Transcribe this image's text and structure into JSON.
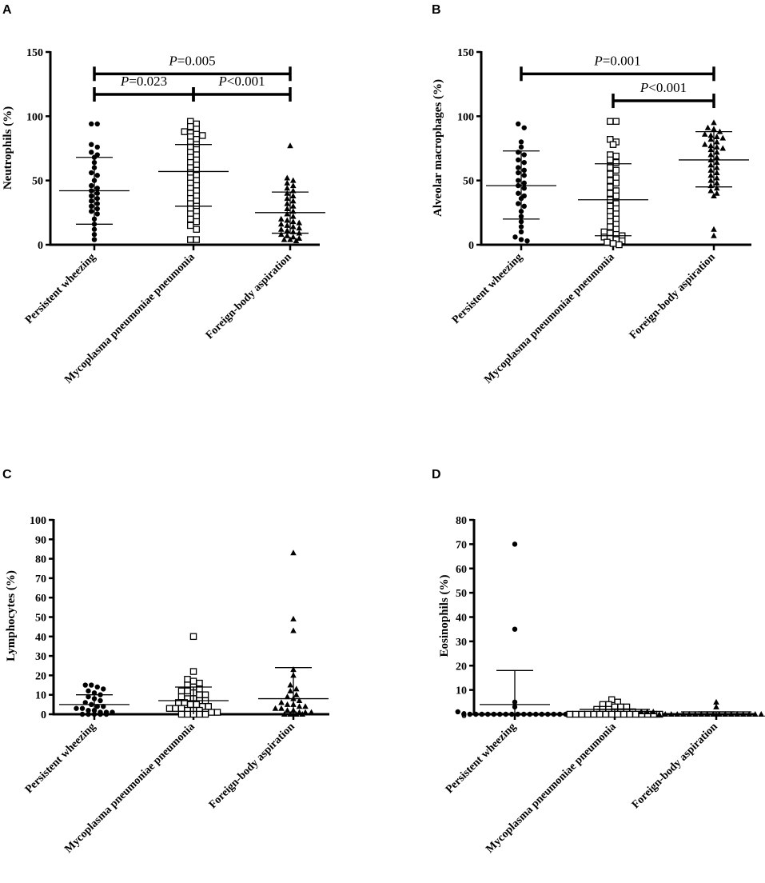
{
  "chart_data": [
    {
      "panel": "A",
      "type": "scatter",
      "ylabel": "Neutrophils (%)",
      "ylim": [
        0,
        150
      ],
      "yticks": [
        0,
        50,
        100,
        150
      ],
      "categories": [
        "Persistent wheezing",
        "Mycoplasma pneumoniae pneumonia",
        "Foreign-body aspiration"
      ],
      "markers": [
        "circle",
        "open-square",
        "triangle"
      ],
      "series": [
        {
          "mean": 42,
          "sd_low": 16,
          "sd_high": 68,
          "values": [
            94,
            94,
            78,
            76,
            72,
            70,
            68,
            64,
            60,
            56,
            54,
            50,
            46,
            44,
            42,
            40,
            38,
            36,
            34,
            32,
            30,
            28,
            26,
            24,
            20,
            16,
            12,
            8,
            4
          ]
        },
        {
          "mean": 57,
          "sd_low": 30,
          "sd_high": 78,
          "values": [
            96,
            94,
            92,
            90,
            88,
            87,
            86,
            85,
            84,
            82,
            80,
            78,
            76,
            74,
            72,
            70,
            68,
            66,
            64,
            62,
            60,
            58,
            56,
            54,
            52,
            50,
            48,
            46,
            44,
            42,
            40,
            38,
            36,
            34,
            32,
            30,
            28,
            26,
            24,
            22,
            20,
            18,
            15,
            12,
            4,
            4
          ]
        },
        {
          "mean": 25,
          "sd_low": 9,
          "sd_high": 41,
          "values": [
            77,
            52,
            50,
            48,
            46,
            44,
            42,
            40,
            38,
            36,
            34,
            32,
            30,
            28,
            26,
            24,
            22,
            20,
            19,
            18,
            17,
            16,
            15,
            14,
            13,
            12,
            11,
            10,
            9,
            8,
            7,
            6,
            5,
            4,
            4,
            3
          ]
        }
      ],
      "comparisons": [
        {
          "from": 0,
          "to": 2,
          "y": 133,
          "p": "=0.005"
        },
        {
          "from": 0,
          "to": 1,
          "y": 117,
          "p": "=0.023"
        },
        {
          "from": 1,
          "to": 2,
          "y": 117,
          "p": "<0.001"
        }
      ]
    },
    {
      "panel": "B",
      "type": "scatter",
      "ylabel": "Alveolar macrophages (%)",
      "ylim": [
        0,
        150
      ],
      "yticks": [
        0,
        50,
        100,
        150
      ],
      "categories": [
        "Persistent wheezing",
        "Mycoplasma pneumoniae pneumonia",
        "Foreign-body aspiration"
      ],
      "markers": [
        "circle",
        "open-square",
        "triangle"
      ],
      "series": [
        {
          "mean": 46,
          "sd_low": 20,
          "sd_high": 73,
          "values": [
            94,
            91,
            80,
            76,
            72,
            70,
            66,
            64,
            60,
            58,
            56,
            54,
            50,
            48,
            46,
            44,
            40,
            38,
            36,
            32,
            30,
            26,
            22,
            18,
            14,
            10,
            6,
            4,
            3
          ]
        },
        {
          "mean": 35,
          "sd_low": 7,
          "sd_high": 63,
          "values": [
            96,
            96,
            82,
            80,
            78,
            70,
            69,
            66,
            64,
            60,
            58,
            55,
            52,
            50,
            48,
            45,
            42,
            40,
            38,
            35,
            32,
            30,
            28,
            26,
            24,
            22,
            20,
            18,
            16,
            14,
            12,
            10,
            9,
            8,
            7,
            6,
            5,
            4,
            3,
            2,
            1,
            0
          ]
        },
        {
          "mean": 66,
          "sd_low": 45,
          "sd_high": 88,
          "values": [
            95,
            91,
            90,
            88,
            86,
            85,
            84,
            83,
            82,
            80,
            78,
            77,
            76,
            75,
            74,
            72,
            70,
            68,
            66,
            64,
            62,
            60,
            58,
            56,
            54,
            52,
            50,
            48,
            46,
            44,
            42,
            40,
            38,
            12,
            7
          ]
        }
      ],
      "comparisons": [
        {
          "from": 0,
          "to": 2,
          "y": 133,
          "p": "=0.001"
        },
        {
          "from": 1,
          "to": 2,
          "y": 112,
          "p": "<0.001"
        }
      ]
    },
    {
      "panel": "C",
      "type": "scatter",
      "ylabel": "Lymphocytes (%)",
      "ylim": [
        0,
        100
      ],
      "yticks": [
        0,
        10,
        20,
        30,
        40,
        50,
        60,
        70,
        80,
        90,
        100
      ],
      "categories": [
        "Persistent wheezing",
        "Mycoplasma pneumoniae pneumonia",
        "Foreign-body aspiration"
      ],
      "markers": [
        "circle",
        "open-square",
        "triangle"
      ],
      "series": [
        {
          "mean": 5,
          "sd_low": 0,
          "sd_high": 10,
          "values": [
            15,
            15,
            14,
            13,
            12,
            11,
            10,
            9,
            8,
            7,
            6,
            5,
            4,
            4,
            3,
            3,
            2,
            2,
            1,
            1,
            1,
            0,
            0,
            0,
            0,
            0
          ]
        },
        {
          "mean": 7,
          "sd_low": 0,
          "sd_high": 14,
          "values": [
            40,
            22,
            18,
            17,
            16,
            15,
            14,
            13,
            12,
            12,
            11,
            10,
            10,
            9,
            8,
            8,
            7,
            7,
            6,
            6,
            5,
            5,
            4,
            4,
            3,
            3,
            3,
            2,
            2,
            2,
            1,
            1,
            1,
            0,
            0,
            0,
            0,
            0
          ]
        },
        {
          "mean": 8,
          "sd_low": 0,
          "sd_high": 24,
          "values": [
            83,
            49,
            43,
            23,
            20,
            15,
            13,
            12,
            10,
            9,
            8,
            7,
            6,
            5,
            5,
            4,
            4,
            3,
            3,
            2,
            2,
            1,
            1,
            1,
            0,
            0,
            0,
            0
          ]
        }
      ],
      "comparisons": []
    },
    {
      "panel": "D",
      "type": "scatter",
      "ylabel": "Eosinophils (%)",
      "ylim": [
        0,
        80
      ],
      "yticks": [
        0,
        10,
        20,
        30,
        40,
        50,
        60,
        70,
        80
      ],
      "categories": [
        "Persistent wheezing",
        "Mycoplasma pneumoniae pneumonia",
        "Foreign-body aspiration"
      ],
      "markers": [
        "circle",
        "open-square",
        "triangle"
      ],
      "series": [
        {
          "mean": 4,
          "sd_low": 0,
          "sd_high": 18,
          "values": [
            70,
            35,
            5,
            3,
            1,
            0,
            0,
            0,
            0,
            0,
            0,
            0,
            0,
            0,
            0,
            0,
            0,
            0,
            0,
            0,
            0,
            0,
            0,
            0
          ]
        },
        {
          "mean": 2,
          "sd_low": 0,
          "sd_high": 2,
          "values": [
            6,
            5,
            4,
            4,
            3,
            3,
            3,
            2,
            2,
            2,
            1,
            1,
            1,
            1,
            0,
            0,
            0,
            0,
            0,
            0,
            0,
            0,
            0,
            0,
            0,
            0,
            0,
            0,
            0,
            0
          ]
        },
        {
          "mean": 1,
          "sd_low": 0,
          "sd_high": 1,
          "values": [
            5,
            3,
            1,
            1,
            1,
            0,
            0,
            0,
            0,
            0,
            0,
            0,
            0,
            0,
            0,
            0,
            0,
            0,
            0,
            0,
            0,
            0,
            0,
            0,
            0,
            0,
            0,
            0
          ]
        }
      ],
      "comparisons": []
    }
  ],
  "p_symbol": "P"
}
